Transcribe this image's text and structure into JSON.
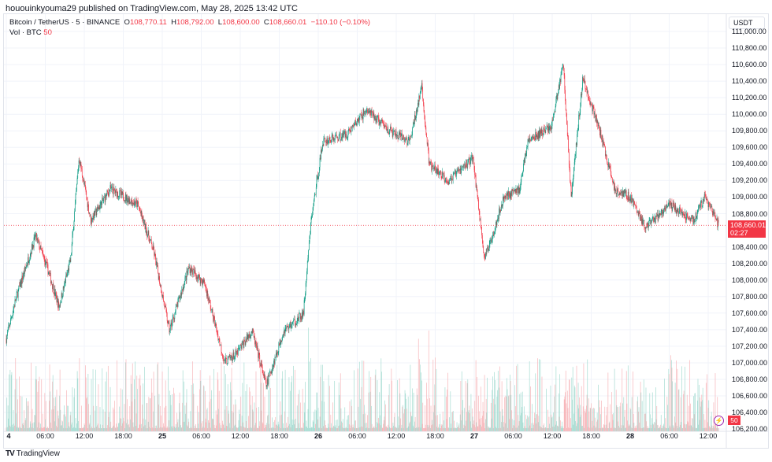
{
  "published": "hououinkyouma29 published on TradingView.com, May 28, 2025 13:42 UTC",
  "legend": {
    "symbol": "Bitcoin / TetherUS · 5 · BINANCE",
    "o_label": "O",
    "o": "108,770.11",
    "h_label": "H",
    "h": "108,792.00",
    "l_label": "L",
    "l": "108,600.00",
    "c_label": "C",
    "c": "108,660.01",
    "change": "−110.10 (−0.10%)",
    "vol_label": "Vol · BTC",
    "vol": "50"
  },
  "currency": "USDT",
  "price_axis": [
    "111,000.00",
    "110,800.00",
    "110,600.00",
    "110,400.00",
    "110,200.00",
    "110,000.00",
    "109,800.00",
    "109,600.00",
    "109,400.00",
    "109,200.00",
    "109,000.00",
    "108,800.00",
    "108,400.00",
    "108,200.00",
    "108,000.00",
    "107,800.00",
    "107,600.00",
    "107,400.00",
    "107,200.00",
    "107,000.00",
    "106,800.00",
    "106,600.00",
    "106,400.00",
    "106,200.00"
  ],
  "time_axis": [
    "4",
    "06:00",
    "12:00",
    "18:00",
    "25",
    "06:00",
    "12:00",
    "18:00",
    "26",
    "06:00",
    "12:00",
    "18:00",
    "27",
    "06:00",
    "12:00",
    "18:00",
    "28",
    "06:00",
    "12:00"
  ],
  "last_price": "108,660.01",
  "countdown": "02:27",
  "last_volume": "50",
  "brand": "TradingView",
  "colors": {
    "up": "#089981",
    "down": "#f23645",
    "up_vol": "#a6dcd2",
    "down_vol": "#f7b6ba",
    "grid": "#f0f3fa"
  },
  "chart_data": {
    "type": "candlestick",
    "interval_minutes": 5,
    "price_range": [
      106200,
      111000
    ],
    "path_hours_price": [
      [
        0,
        107294
      ],
      [
        1.45,
        107769
      ],
      [
        4.5,
        108529
      ],
      [
        6.3,
        108149
      ],
      [
        8.1,
        107674
      ],
      [
        9.9,
        108244
      ],
      [
        11.2,
        109479
      ],
      [
        13,
        108719
      ],
      [
        16,
        109099
      ],
      [
        20.2,
        108909
      ],
      [
        22.7,
        108339
      ],
      [
        25.1,
        107389
      ],
      [
        28.1,
        108149
      ],
      [
        30.5,
        107959
      ],
      [
        33.6,
        107009
      ],
      [
        35.4,
        107104
      ],
      [
        37.8,
        107389
      ],
      [
        40,
        106724
      ],
      [
        42.7,
        107389
      ],
      [
        45.7,
        107579
      ],
      [
        46.9,
        108719
      ],
      [
        48.7,
        109669
      ],
      [
        52.4,
        109764
      ],
      [
        55.4,
        110049
      ],
      [
        59.6,
        109764
      ],
      [
        62.1,
        109669
      ],
      [
        63.9,
        110334
      ],
      [
        65.1,
        109384
      ],
      [
        68.1,
        109194
      ],
      [
        71.8,
        109479
      ],
      [
        73.6,
        108244
      ],
      [
        76.6,
        109004
      ],
      [
        79,
        109099
      ],
      [
        80.2,
        109669
      ],
      [
        83.9,
        109859
      ],
      [
        85.7,
        110619
      ],
      [
        86.9,
        109004
      ],
      [
        88.7,
        110429
      ],
      [
        91.1,
        109859
      ],
      [
        93.6,
        109099
      ],
      [
        96,
        109004
      ],
      [
        98.4,
        108624
      ],
      [
        102,
        108909
      ],
      [
        105.7,
        108719
      ],
      [
        107.5,
        109004
      ],
      [
        109.6,
        108660
      ]
    ]
  }
}
